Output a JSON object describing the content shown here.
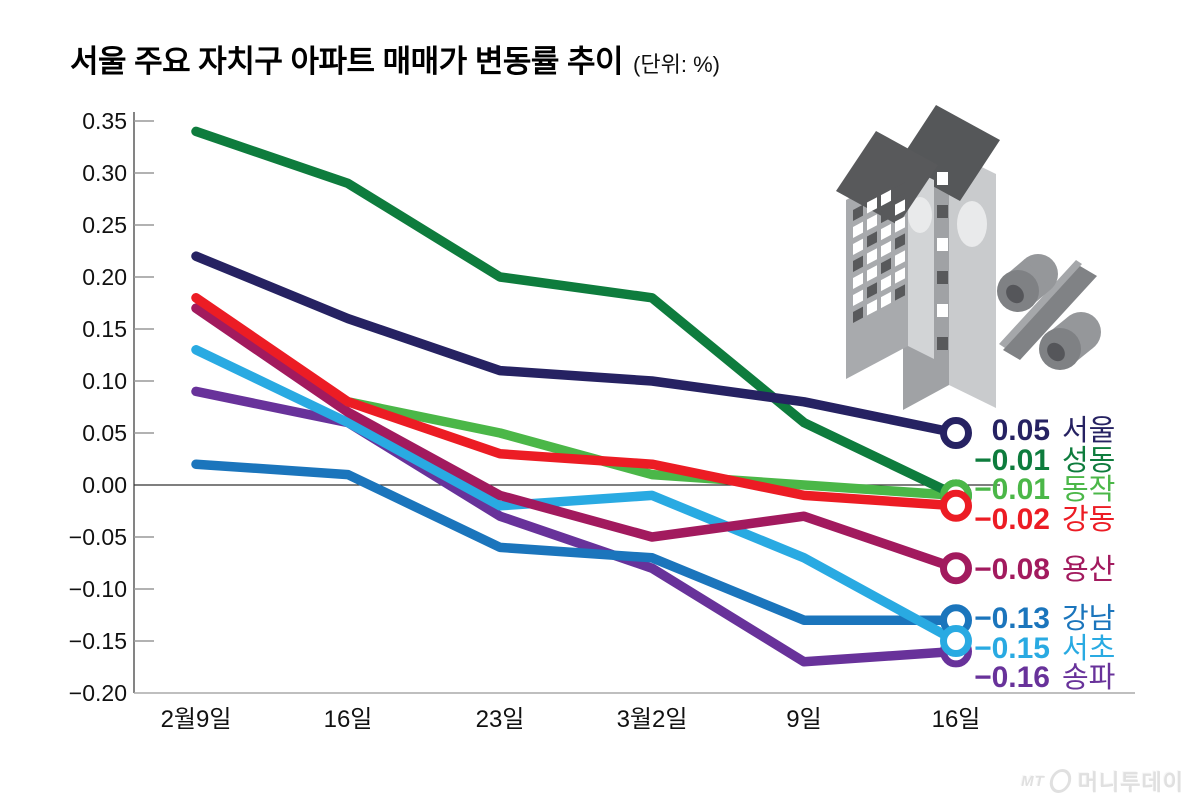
{
  "title": {
    "text": "서울 주요 자치구 아파트 매매가 변동률 추이",
    "unit": "(단위: %)"
  },
  "watermark": {
    "prefix": "MT",
    "name": "머니투데이"
  },
  "chart_data": {
    "type": "line",
    "title": "서울 주요 자치구 아파트 매매가 변동률 추이",
    "unit": "%",
    "categories": [
      "2월9일",
      "16일",
      "23일",
      "3월2일",
      "9일",
      "16일"
    ],
    "series": [
      {
        "id": "seoul",
        "name": "서울",
        "color": "#262262",
        "values": [
          0.22,
          0.16,
          0.11,
          0.1,
          0.08,
          0.05
        ],
        "end_label": "0.05"
      },
      {
        "id": "seongdong",
        "name": "성동",
        "color": "#0e7c3d",
        "values": [
          0.34,
          0.29,
          0.2,
          0.18,
          0.06,
          -0.01
        ],
        "end_label": "−0.01"
      },
      {
        "id": "dongjak",
        "name": "동작",
        "color": "#4bb748",
        "values": [
          null,
          0.08,
          0.05,
          0.01,
          0.0,
          -0.01
        ],
        "end_label": "−0.01"
      },
      {
        "id": "gangdong",
        "name": "강동",
        "color": "#ec1c24",
        "values": [
          0.18,
          0.08,
          0.03,
          0.02,
          -0.01,
          -0.02
        ],
        "end_label": "−0.02"
      },
      {
        "id": "yongsan",
        "name": "용산",
        "color": "#a21a5e",
        "values": [
          0.17,
          0.07,
          -0.01,
          -0.05,
          -0.03,
          -0.08
        ],
        "end_label": "−0.08"
      },
      {
        "id": "gangnam",
        "name": "강남",
        "color": "#1b75bc",
        "values": [
          0.02,
          0.01,
          -0.06,
          -0.07,
          -0.13,
          -0.13
        ],
        "end_label": "−0.13"
      },
      {
        "id": "seocho",
        "name": "서초",
        "color": "#29aae2",
        "values": [
          0.13,
          0.06,
          -0.02,
          -0.01,
          -0.07,
          -0.15
        ],
        "end_label": "−0.15"
      },
      {
        "id": "songpa",
        "name": "송파",
        "color": "#68329a",
        "values": [
          0.09,
          0.06,
          -0.03,
          -0.08,
          -0.17,
          -0.16
        ],
        "end_label": "−0.16"
      }
    ],
    "ylim": [
      -0.2,
      0.35
    ],
    "y_ticks": [
      {
        "value": 0.35,
        "label": "0.35"
      },
      {
        "value": 0.3,
        "label": "0.30"
      },
      {
        "value": 0.25,
        "label": "0.25"
      },
      {
        "value": 0.2,
        "label": "0.20"
      },
      {
        "value": 0.15,
        "label": "0.15"
      },
      {
        "value": 0.1,
        "label": "0.10"
      },
      {
        "value": 0.05,
        "label": "0.05"
      },
      {
        "value": 0.0,
        "label": "0.00"
      },
      {
        "value": -0.05,
        "label": "−0.05"
      },
      {
        "value": -0.1,
        "label": "−0.10"
      },
      {
        "value": -0.15,
        "label": "−0.15"
      },
      {
        "value": -0.2,
        "label": "−0.20"
      }
    ],
    "grid": "left-ticks-only, zero-baseline",
    "legend_position": "right-end-labels"
  }
}
